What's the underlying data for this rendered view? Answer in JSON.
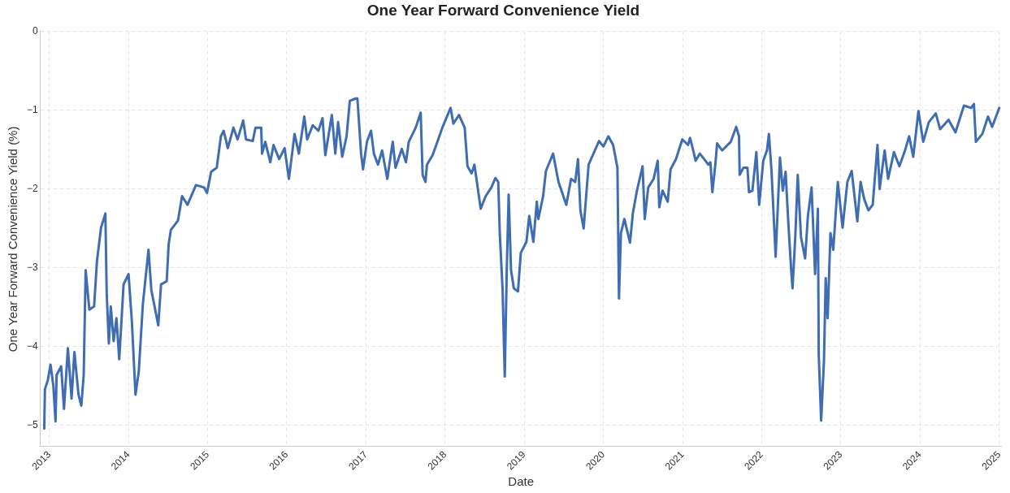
{
  "chart_data": {
    "type": "line",
    "title": "One Year Forward Convenience Yield",
    "xlabel": "Date",
    "ylabel": "One Year Forward Convenience Yield (%)",
    "xlim": [
      "2012-11-20",
      "2025-01-12"
    ],
    "xticks": [
      "2013",
      "2014",
      "2015",
      "2016",
      "2017",
      "2018",
      "2019",
      "2020",
      "2021",
      "2022",
      "2023",
      "2024",
      "2025"
    ],
    "ylim": [
      -5.27,
      0
    ],
    "yticks": [
      -5,
      -4,
      -3,
      -2,
      -1,
      0
    ],
    "grid": true,
    "legend": false,
    "marker": "none",
    "line_style": "solid",
    "series": [
      {
        "color": "#3f6db3",
        "x": [
          "2012-12-08",
          "2012-12-11",
          "2012-12-24",
          "2013-01-06",
          "2013-01-19",
          "2013-01-29",
          "2013-02-03",
          "2013-02-24",
          "2013-03-09",
          "2013-03-27",
          "2013-04-13",
          "2013-04-26",
          "2013-05-15",
          "2013-05-28",
          "2013-06-08",
          "2013-06-17",
          "2013-07-04",
          "2013-07-26",
          "2013-08-08",
          "2013-08-27",
          "2013-09-16",
          "2013-09-22",
          "2013-10-02",
          "2013-10-11",
          "2013-10-24",
          "2013-11-06",
          "2013-11-19",
          "2013-12-09",
          "2014-01-01",
          "2014-01-16",
          "2014-02-02",
          "2014-02-17",
          "2014-03-08",
          "2014-04-03",
          "2014-04-16",
          "2014-05-18",
          "2014-05-31",
          "2014-06-26",
          "2014-07-05",
          "2014-07-15",
          "2014-08-17",
          "2014-09-05",
          "2014-09-30",
          "2014-11-08",
          "2014-12-16",
          "2014-12-29",
          "2015-01-17",
          "2015-02-12",
          "2015-03-03",
          "2015-03-16",
          "2015-04-04",
          "2015-04-30",
          "2015-05-19",
          "2015-06-14",
          "2015-06-27",
          "2015-07-28",
          "2015-08-10",
          "2015-09-05",
          "2015-09-09",
          "2015-09-24",
          "2015-10-17",
          "2015-11-01",
          "2015-11-27",
          "2015-12-22",
          "2016-01-11",
          "2016-02-06",
          "2016-02-26",
          "2016-03-22",
          "2016-04-04",
          "2016-04-30",
          "2016-05-26",
          "2016-06-14",
          "2016-06-27",
          "2016-07-27",
          "2016-08-12",
          "2016-08-25",
          "2016-09-13",
          "2016-10-03",
          "2016-10-18",
          "2016-11-14",
          "2016-11-22",
          "2016-12-09",
          "2016-12-18",
          "2017-01-05",
          "2017-01-24",
          "2017-02-06",
          "2017-02-25",
          "2017-03-16",
          "2017-04-09",
          "2017-05-04",
          "2017-05-17",
          "2017-06-15",
          "2017-07-04",
          "2017-07-17",
          "2017-08-18",
          "2017-09-10",
          "2017-09-19",
          "2017-10-02",
          "2017-10-09",
          "2017-11-04",
          "2017-11-30",
          "2017-12-19",
          "2018-01-26",
          "2018-02-08",
          "2018-03-06",
          "2018-04-01",
          "2018-04-14",
          "2018-05-03",
          "2018-05-16",
          "2018-06-14",
          "2018-07-07",
          "2018-08-02",
          "2018-08-21",
          "2018-09-03",
          "2018-09-10",
          "2018-09-23",
          "2018-10-03",
          "2018-10-12",
          "2018-10-21",
          "2018-11-01",
          "2018-11-14",
          "2018-12-03",
          "2018-12-16",
          "2019-01-11",
          "2019-01-24",
          "2019-02-12",
          "2019-02-28",
          "2019-03-07",
          "2019-03-29",
          "2019-04-11",
          "2019-05-14",
          "2019-06-08",
          "2019-07-14",
          "2019-08-05",
          "2019-08-24",
          "2019-09-06",
          "2019-09-17",
          "2019-10-02",
          "2019-10-25",
          "2019-11-10",
          "2019-12-12",
          "2020-01-01",
          "2020-01-24",
          "2020-02-15",
          "2020-03-06",
          "2020-03-13",
          "2020-03-22",
          "2020-04-07",
          "2020-05-03",
          "2020-05-16",
          "2020-06-04",
          "2020-06-30",
          "2020-07-10",
          "2020-07-26",
          "2020-08-20",
          "2020-09-08",
          "2020-09-15",
          "2020-09-30",
          "2020-10-24",
          "2020-11-06",
          "2020-12-01",
          "2020-12-30",
          "2021-01-26",
          "2021-02-04",
          "2021-02-17",
          "2021-03-02",
          "2021-03-21",
          "2021-04-16",
          "2021-04-29",
          "2021-05-09",
          "2021-05-18",
          "2021-05-31",
          "2021-06-09",
          "2021-07-02",
          "2021-08-11",
          "2021-09-05",
          "2021-09-18",
          "2021-09-21",
          "2021-10-08",
          "2021-10-27",
          "2021-11-03",
          "2021-11-19",
          "2021-12-07",
          "2021-12-20",
          "2022-01-08",
          "2022-01-25",
          "2022-02-03",
          "2022-02-15",
          "2022-03-06",
          "2022-03-26",
          "2022-04-08",
          "2022-04-21",
          "2022-05-04",
          "2022-05-17",
          "2022-05-23",
          "2022-06-05",
          "2022-06-16",
          "2022-07-01",
          "2022-07-20",
          "2022-08-02",
          "2022-08-19",
          "2022-09-04",
          "2022-09-17",
          "2022-09-21",
          "2022-10-02",
          "2022-10-15",
          "2022-10-23",
          "2022-11-01",
          "2022-11-14",
          "2022-11-27",
          "2022-12-18",
          "2023-01-09",
          "2023-01-31",
          "2023-02-20",
          "2023-03-18",
          "2023-04-02",
          "2023-04-19",
          "2023-05-08",
          "2023-05-28",
          "2023-06-19",
          "2023-06-29",
          "2023-07-22",
          "2023-08-07",
          "2023-09-03",
          "2023-09-28",
          "2023-10-24",
          "2023-11-12",
          "2023-12-01",
          "2023-12-25",
          "2024-01-16",
          "2024-02-11",
          "2024-03-14",
          "2024-04-03",
          "2024-05-12",
          "2024-06-13",
          "2024-07-22",
          "2024-08-24",
          "2024-09-06",
          "2024-09-15",
          "2024-10-15",
          "2024-11-10",
          "2024-11-29",
          "2025-01-01"
        ],
        "values": [
          -5.04,
          -4.54,
          -4.43,
          -4.23,
          -4.5,
          -4.95,
          -4.36,
          -4.25,
          -4.79,
          -4.02,
          -4.66,
          -4.07,
          -4.61,
          -4.75,
          -4.36,
          -3.03,
          -3.53,
          -3.49,
          -2.92,
          -2.49,
          -2.31,
          -3.31,
          -3.96,
          -3.49,
          -3.93,
          -3.64,
          -4.16,
          -3.21,
          -3.08,
          -3.67,
          -4.61,
          -4.32,
          -3.46,
          -2.77,
          -3.28,
          -3.73,
          -3.21,
          -3.17,
          -2.7,
          -2.52,
          -2.4,
          -2.09,
          -2.2,
          -1.95,
          -1.98,
          -2.05,
          -1.78,
          -1.73,
          -1.33,
          -1.26,
          -1.48,
          -1.22,
          -1.37,
          -1.13,
          -1.37,
          -1.39,
          -1.22,
          -1.22,
          -1.55,
          -1.4,
          -1.66,
          -1.44,
          -1.62,
          -1.48,
          -1.87,
          -1.3,
          -1.55,
          -1.08,
          -1.37,
          -1.19,
          -1.26,
          -1.1,
          -1.57,
          -1.06,
          -1.55,
          -1.15,
          -1.59,
          -1.33,
          -0.88,
          -0.85,
          -0.85,
          -1.55,
          -1.75,
          -1.4,
          -1.26,
          -1.55,
          -1.69,
          -1.51,
          -1.87,
          -1.4,
          -1.73,
          -1.49,
          -1.66,
          -1.4,
          -1.22,
          -1.03,
          -1.82,
          -1.91,
          -1.69,
          -1.57,
          -1.37,
          -1.22,
          -0.97,
          -1.17,
          -1.06,
          -1.22,
          -1.71,
          -1.8,
          -1.69,
          -2.25,
          -2.09,
          -1.98,
          -1.86,
          -1.91,
          -2.56,
          -3.28,
          -4.38,
          -3.06,
          -2.07,
          -3.03,
          -3.26,
          -3.3,
          -2.81,
          -2.67,
          -2.34,
          -2.67,
          -2.16,
          -2.38,
          -2.09,
          -1.77,
          -1.55,
          -1.91,
          -2.2,
          -1.87,
          -1.91,
          -1.62,
          -2.27,
          -2.5,
          -1.69,
          -1.59,
          -1.39,
          -1.46,
          -1.33,
          -1.44,
          -1.73,
          -3.39,
          -2.56,
          -2.38,
          -2.68,
          -2.31,
          -2.02,
          -1.71,
          -2.38,
          -1.98,
          -1.87,
          -1.64,
          -2.23,
          -2.02,
          -2.16,
          -1.75,
          -1.62,
          -1.37,
          -1.44,
          -1.35,
          -1.49,
          -1.64,
          -1.55,
          -1.64,
          -1.69,
          -1.66,
          -2.04,
          -1.71,
          -1.42,
          -1.51,
          -1.4,
          -1.21,
          -1.33,
          -1.82,
          -1.73,
          -1.73,
          -2.04,
          -2.02,
          -1.53,
          -2.2,
          -1.64,
          -1.51,
          -1.3,
          -1.77,
          -2.86,
          -1.6,
          -2.02,
          -1.78,
          -2.45,
          -3.04,
          -3.26,
          -2.59,
          -1.82,
          -2.61,
          -2.88,
          -2.34,
          -1.98,
          -3.08,
          -2.25,
          -4.11,
          -4.94,
          -4.18,
          -3.13,
          -3.64,
          -2.56,
          -2.77,
          -1.91,
          -2.49,
          -1.91,
          -1.77,
          -2.41,
          -1.91,
          -2.13,
          -2.27,
          -2.2,
          -1.44,
          -2.0,
          -1.51,
          -1.87,
          -1.53,
          -1.71,
          -1.51,
          -1.33,
          -1.59,
          -1.01,
          -1.4,
          -1.15,
          -1.04,
          -1.24,
          -1.12,
          -1.28,
          -0.94,
          -0.97,
          -0.92,
          -1.4,
          -1.3,
          -1.08,
          -1.21,
          -0.97
        ]
      }
    ]
  }
}
